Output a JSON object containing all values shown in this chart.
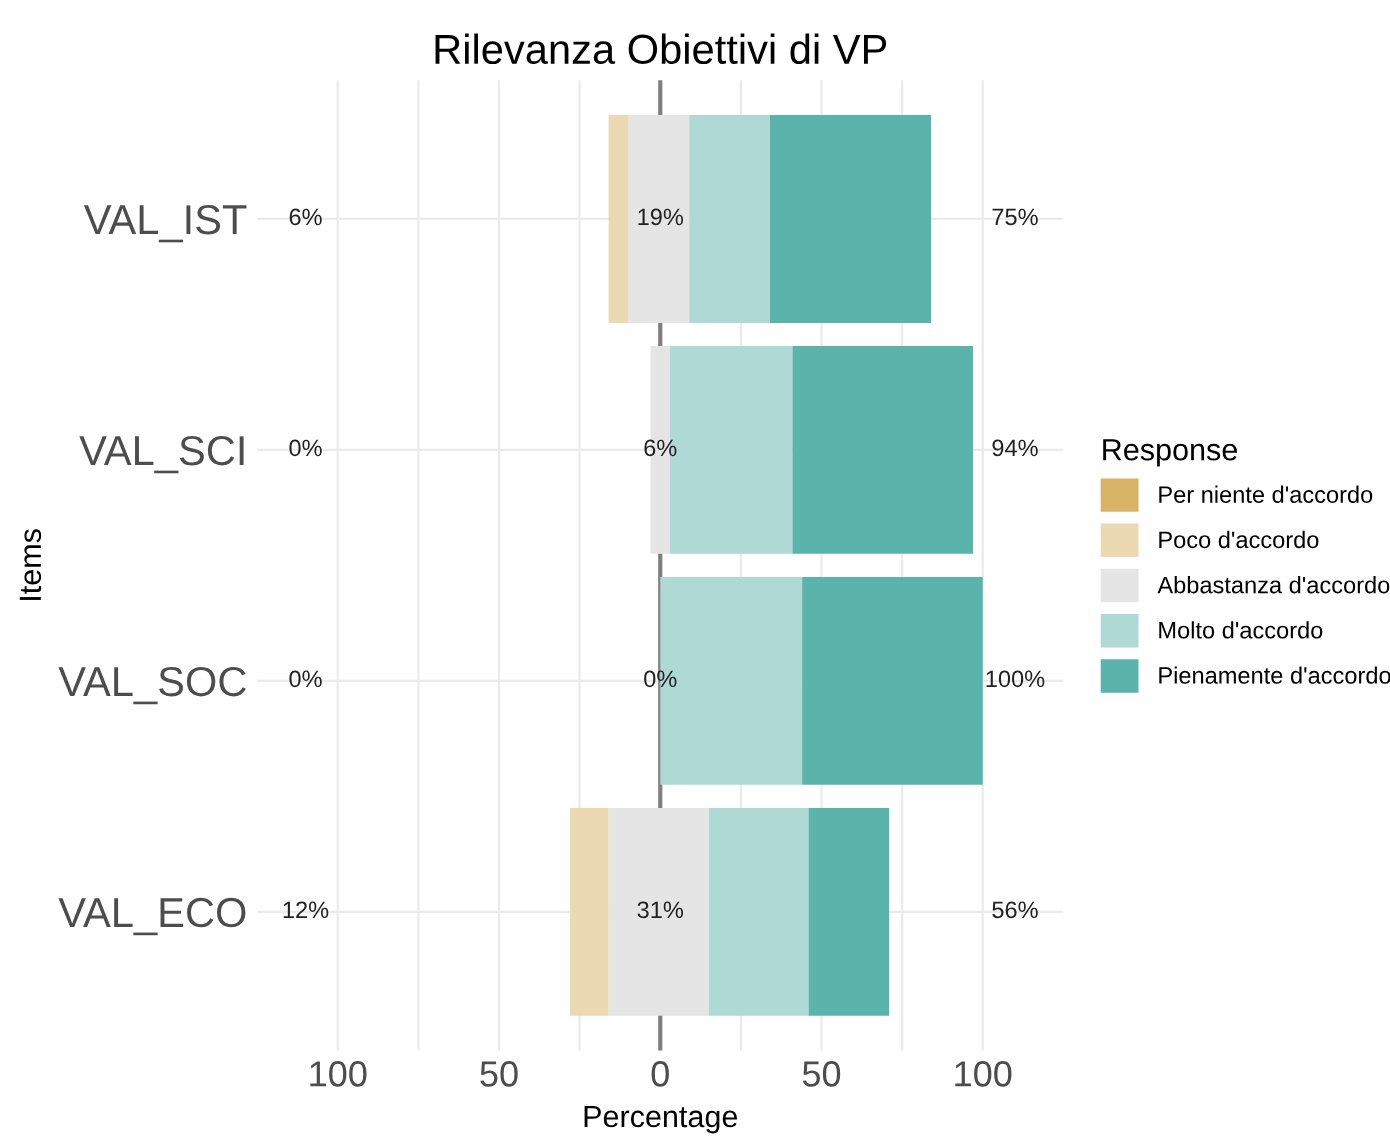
{
  "chart_data": {
    "type": "bar",
    "orientation": "horizontal",
    "title": "Rilevanza Obiettivi di VP",
    "xlabel": "Percentage",
    "ylabel": "Items",
    "legend_title": "Response",
    "categories": [
      "VAL_IST",
      "VAL_SCI",
      "VAL_SOC",
      "VAL_ECO"
    ],
    "series": [
      {
        "name": "Per niente d'accordo",
        "color": "#d8b365",
        "values": [
          null,
          null,
          null,
          null
        ]
      },
      {
        "name": "Poco d'accordo",
        "color": "#ebd9b2",
        "values": [
          6,
          null,
          null,
          12
        ],
        "base": [
          -16,
          null,
          null,
          -28
        ]
      },
      {
        "name": "Abbastanza d'accordo",
        "color": "#e5e5e5",
        "values": [
          19,
          6,
          0,
          31
        ],
        "base": [
          -10,
          -3,
          null,
          -16
        ]
      },
      {
        "name": "Molto d'accordo",
        "color": "#aed9d5",
        "values": [
          25,
          38,
          44,
          31
        ],
        "base": [
          9,
          3,
          0,
          15
        ]
      },
      {
        "name": "Pienamente d'accordo",
        "color": "#5ab4ac",
        "values": [
          50,
          56,
          56,
          25
        ],
        "base": [
          34,
          41,
          44,
          46
        ]
      }
    ],
    "xlim": [
      -125,
      125
    ],
    "xticks": [
      {
        "value": -100,
        "label": "100"
      },
      {
        "value": -75,
        "label": null
      },
      {
        "value": -50,
        "label": "50"
      },
      {
        "value": -25,
        "label": null
      },
      0,
      {
        "value": 25,
        "label": null
      },
      50,
      {
        "value": 75,
        "label": null
      },
      100
    ],
    "ref_lines": [
      {
        "axis": "x",
        "value": 0,
        "color": "#7f7f7f"
      }
    ],
    "annotations": [
      "6%",
      "19%",
      "75%",
      "0%",
      "6%",
      "94%",
      "0%",
      "0%",
      "100%",
      "12%",
      "31%",
      "56%"
    ],
    "grid": true,
    "legend": "right"
  }
}
